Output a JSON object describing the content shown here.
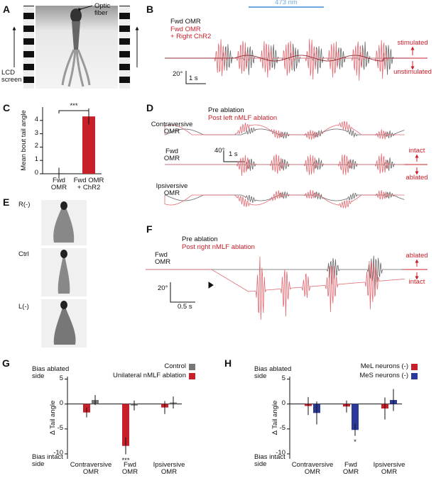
{
  "panel_a": {
    "letter": "A",
    "fiber_label": "Optic\nfiber",
    "screen_label": "LCD\nscreen"
  },
  "panel_b": {
    "letter": "B",
    "light_label": "473 nm",
    "legend": [
      "Fwd OMR",
      "Fwd OMR\n+ Right ChR2"
    ],
    "scale_y": "20°",
    "scale_x": "1 s",
    "top_label": "stimulated",
    "bottom_label": "unstimulated"
  },
  "panel_d": {
    "letter": "D",
    "legend": [
      "Pre ablation",
      "Post left nMLF ablation"
    ],
    "rows": [
      "Contraversive\nOMR",
      "Fwd\nOMR",
      "Ipsiversive\nOMR"
    ],
    "scale_y": "40°",
    "scale_x": "1 s",
    "top_label": "intact",
    "bottom_label": "ablated"
  },
  "panel_e": {
    "letter": "E",
    "rows": [
      "R(-)",
      "Ctrl",
      "L(-)"
    ]
  },
  "panel_f": {
    "letter": "F",
    "legend": [
      "Pre ablation",
      "Post right nMLF ablation"
    ],
    "row": "Fwd\nOMR",
    "scale_y": "20°",
    "scale_x": "0.5 s",
    "top_label": "ablated",
    "bottom_label": "intact"
  },
  "chart_data": [
    {
      "letter": "C",
      "type": "bar",
      "ylabel": "Mean bout tail angle",
      "categories": [
        "Fwd\nOMR",
        "Fwd OMR\n+ ChR2"
      ],
      "values": [
        0.05,
        4.3
      ],
      "errors": [
        0.4,
        0.6
      ],
      "colors": [
        "#777777",
        "#c8202b"
      ],
      "ylim": [
        0,
        5
      ],
      "yticks": [
        0,
        1,
        2,
        3,
        4
      ],
      "annotation": "***"
    },
    {
      "letter": "G",
      "type": "grouped_bar",
      "ylabel": "Δ Tail angle",
      "bias_top": "Bias ablated\nside",
      "bias_bottom": "Bias intact\nside",
      "categories": [
        "Contraversive\nOMR",
        "Fwd\nOMR",
        "Ipsiversive\nOMR"
      ],
      "series": [
        {
          "name": "Control",
          "color": "#777777",
          "values": [
            0.8,
            -0.3,
            0.3
          ],
          "errors": [
            1.0,
            1.0,
            1.2
          ]
        },
        {
          "name": "Unilateral nMLF ablation",
          "color": "#c8202b",
          "values": [
            -1.7,
            -8.4,
            -0.7
          ],
          "errors": [
            1.0,
            1.7,
            1.3
          ]
        }
      ],
      "ylim": [
        -11,
        5.5
      ],
      "yticks": [
        -10,
        -5,
        0,
        5
      ],
      "annotation": "***"
    },
    {
      "letter": "H",
      "type": "grouped_bar",
      "ylabel": "Δ Tail angle",
      "bias_top": "Bias ablated\nside",
      "bias_bottom": "Bias intact\nside",
      "categories": [
        "Contraversive\nOMR",
        "Fwd\nOMR",
        "Ipsiversive\nOMR"
      ],
      "series": [
        {
          "name": "MeL neurons (-)",
          "color": "#c8202b",
          "values": [
            -0.4,
            -0.5,
            -0.9
          ],
          "errors": [
            1.8,
            1.2,
            2.2
          ]
        },
        {
          "name": "MeS neurons (-)",
          "color": "#2b3a9a",
          "values": [
            -1.8,
            -5.2,
            0.8
          ],
          "errors": [
            2.3,
            1.2,
            2.2
          ]
        }
      ],
      "ylim": [
        -11,
        5.5
      ],
      "yticks": [
        -10,
        -5,
        0,
        5
      ],
      "annotation": "*"
    }
  ]
}
